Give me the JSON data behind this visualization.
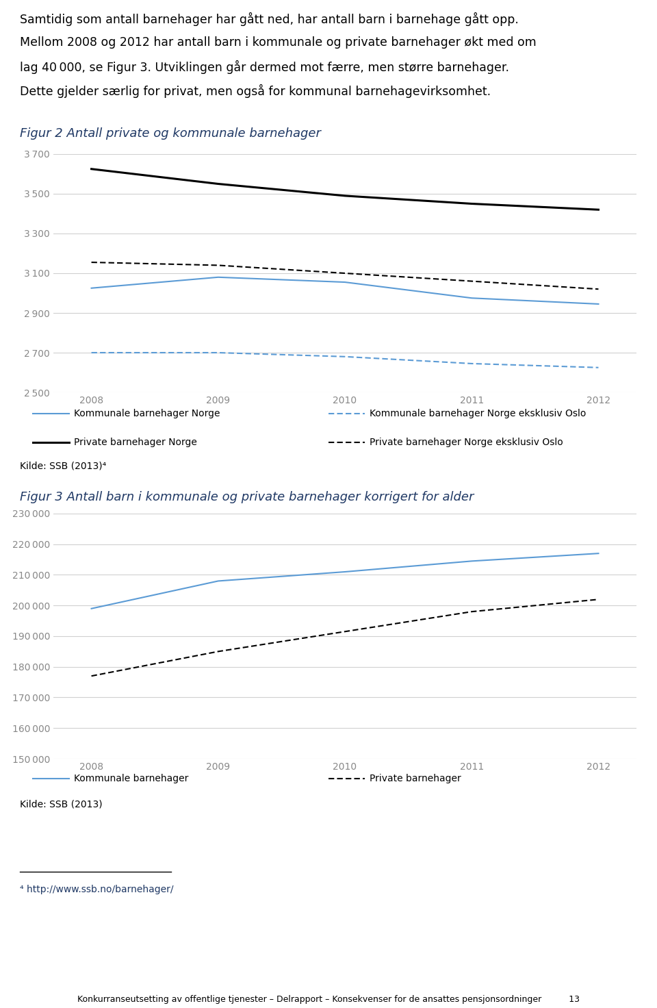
{
  "text_intro": [
    "Samtidig som antall barnehager har gått ned, har antall barn i barnehage gått opp.",
    "Mellom 2008 og 2012 har antall barn i kommunale og private barnehager økt med om",
    "lag 40 000, se Figur 3. Utviklingen går dermed mot færre, men større barnehager.",
    "Dette gjelder særlig for privat, men også for kommunal barnehagevirksomhet."
  ],
  "fig2_title": "Figur 2 Antall private og kommunale barnehager",
  "fig2_years": [
    2008,
    2009,
    2010,
    2011,
    2012
  ],
  "fig2_private_norge": [
    3625,
    3550,
    3490,
    3450,
    3420
  ],
  "fig2_private_eksl_oslo": [
    3155,
    3140,
    3100,
    3060,
    3020
  ],
  "fig2_kommunale_norge": [
    3025,
    3080,
    3055,
    2975,
    2945
  ],
  "fig2_kommunale_eksl_oslo": [
    2700,
    2700,
    2680,
    2645,
    2625
  ],
  "fig2_ylim": [
    2500,
    3700
  ],
  "fig2_yticks": [
    2500,
    2700,
    2900,
    3100,
    3300,
    3500,
    3700
  ],
  "fig2_legend": [
    "Kommunale barnehager Norge",
    "Private barnehager Norge",
    "Kommunale barnehager Norge eksklusiv Oslo",
    "Private barnehager Norge eksklusiv Oslo"
  ],
  "fig2_source": "Kilde: SSB (2013)⁴",
  "fig3_title": "Figur 3 Antall barn i kommunale og private barnehager korrigert for alder",
  "fig3_years": [
    2008,
    2009,
    2010,
    2011,
    2012
  ],
  "fig3_kommunale": [
    199000,
    208000,
    211000,
    214500,
    217000
  ],
  "fig3_private": [
    177000,
    185000,
    191500,
    198000,
    202000
  ],
  "fig3_ylim": [
    150000,
    230000
  ],
  "fig3_yticks": [
    150000,
    160000,
    170000,
    180000,
    190000,
    200000,
    210000,
    220000,
    230000
  ],
  "fig3_legend": [
    "Kommunale barnehager",
    "Private barnehager"
  ],
  "fig3_source": "Kilde: SSB (2013)",
  "footnote": "⁴ http://www.ssb.no/barnehager/",
  "page_footer": "Konkurranseutsetting av offentlige tjenester – Delrapport – Konsekvenser for de ansattes pensjonsordninger          13",
  "blue_color": "#5B9BD5",
  "black_color": "#000000",
  "title_color": "#1F3864",
  "grid_color": "#D0D0D0",
  "text_color": "#333333",
  "bg_color": "#FFFFFF"
}
